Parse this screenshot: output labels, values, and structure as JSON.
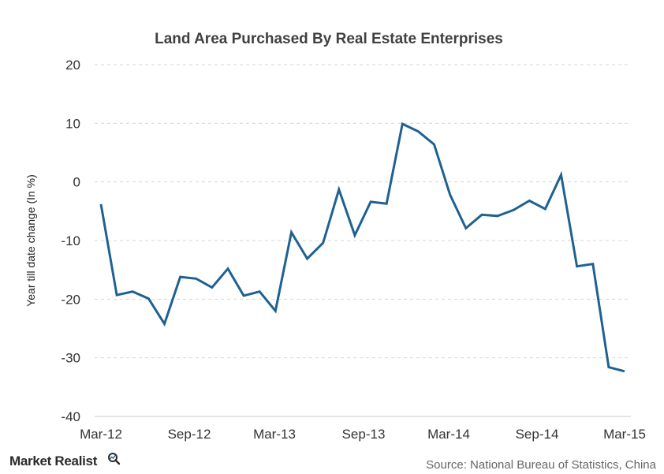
{
  "chart_data": {
    "type": "line",
    "title": "Land Area Purchased By Real Estate Enterprises",
    "ylabel": "Year till date change (In %)",
    "xlabel": "",
    "ylim": [
      -40,
      20
    ],
    "yticks": [
      20,
      10,
      0,
      -10,
      -20,
      -30,
      -40
    ],
    "xtick_labels": [
      "Mar-12",
      "Sep-12",
      "Mar-13",
      "Sep-13",
      "Mar-14",
      "Sep-14",
      "Mar-15"
    ],
    "grid": true,
    "legend": "none",
    "line_color": "#1f6190",
    "series": [
      {
        "x": [
          "Mar-12",
          "Apr-12",
          "May-12",
          "Jun-12",
          "Jul-12",
          "Aug-12",
          "Sep-12",
          "Oct-12",
          "Nov-12",
          "Dec-12",
          "Feb-13",
          "Mar-13",
          "Apr-13",
          "May-13",
          "Jun-13",
          "Jul-13",
          "Aug-13",
          "Sep-13",
          "Oct-13",
          "Nov-13",
          "Dec-13",
          "Feb-14",
          "Mar-14",
          "Apr-14",
          "May-14",
          "Jun-14",
          "Jul-14",
          "Aug-14",
          "Sep-14",
          "Oct-14",
          "Nov-14",
          "Dec-14",
          "Feb-15",
          "Mar-15"
        ],
        "values": [
          -3.8,
          -19.3,
          -18.7,
          -19.9,
          -24.2,
          -16.2,
          -16.5,
          -18.0,
          -14.8,
          -19.4,
          -18.7,
          -22.0,
          -8.6,
          -13.1,
          -10.4,
          -1.3,
          -9.1,
          -3.4,
          -3.7,
          9.9,
          8.6,
          6.4,
          -2.2,
          -7.9,
          -5.6,
          -5.8,
          -4.8,
          -3.2,
          -4.6,
          1.2,
          -14.4,
          -14.0,
          -31.6,
          -32.3
        ]
      }
    ]
  },
  "source": "Source: National Bureau of Statistics, China",
  "brand": {
    "name": "Market Realist",
    "icon": "magnifier-icon"
  }
}
